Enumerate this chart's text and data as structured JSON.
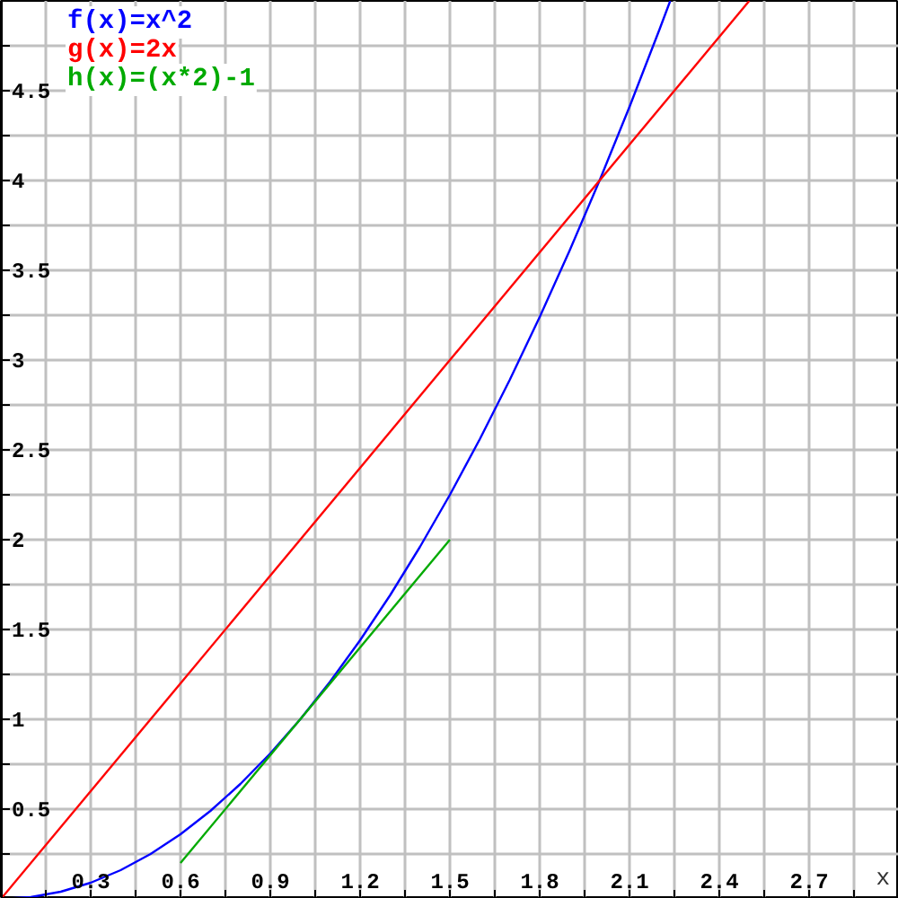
{
  "chart_data": {
    "type": "line",
    "xlabel": "x",
    "xlim": [
      0,
      3
    ],
    "ylim": [
      0,
      5
    ],
    "xticks": [
      {
        "value": 0.15,
        "label": null
      },
      0.3,
      {
        "value": 0.45,
        "label": null
      },
      0.6,
      {
        "value": 0.75,
        "label": null
      },
      0.9,
      {
        "value": 1.05,
        "label": null
      },
      1.2,
      {
        "value": 1.35,
        "label": null
      },
      1.5,
      {
        "value": 1.65,
        "label": null
      },
      1.8,
      {
        "value": 1.95,
        "label": null
      },
      2.1,
      {
        "value": 2.25,
        "label": null
      },
      2.4,
      {
        "value": 2.55,
        "label": null
      },
      2.7,
      {
        "value": 2.85,
        "label": null
      }
    ],
    "yticks": [
      {
        "value": 0.25,
        "label": null
      },
      0.5,
      {
        "value": 0.75,
        "label": null
      },
      1,
      {
        "value": 1.25,
        "label": null
      },
      1.5,
      {
        "value": 1.75,
        "label": null
      },
      2,
      {
        "value": 2.25,
        "label": null
      },
      2.5,
      {
        "value": 2.75,
        "label": null
      },
      3,
      {
        "value": 3.25,
        "label": null
      },
      3.5,
      {
        "value": 3.75,
        "label": null
      },
      4,
      {
        "value": 4.25,
        "label": null
      },
      4.5,
      {
        "value": 4.75,
        "label": null
      }
    ],
    "grid": true,
    "legend": "top left",
    "line_style": "solid",
    "series": [
      {
        "name": "f(x)=x^2",
        "color": "#0000ff",
        "x": [
          0,
          0.1,
          0.2,
          0.3,
          0.4,
          0.5,
          0.6,
          0.7,
          0.8,
          0.9,
          1,
          1.1,
          1.2,
          1.3,
          1.4,
          1.5,
          1.6,
          1.7,
          1.8,
          1.9,
          2,
          2.1,
          2.2,
          2.236
        ],
        "values": [
          0,
          0.01,
          0.04,
          0.09,
          0.16,
          0.25,
          0.36,
          0.49,
          0.64,
          0.81,
          1,
          1.21,
          1.44,
          1.69,
          1.96,
          2.25,
          2.56,
          2.89,
          3.24,
          3.61,
          4,
          4.41,
          4.84,
          5
        ]
      },
      {
        "name": "g(x)=2x",
        "color": "#ff0000",
        "x": [
          0,
          2.5
        ],
        "values": [
          0,
          5
        ]
      },
      {
        "name": "h(x)=(x*2)-1",
        "color": "#00aa00",
        "x": [
          0.6,
          1.5
        ],
        "values": [
          0.2,
          2
        ]
      }
    ]
  }
}
